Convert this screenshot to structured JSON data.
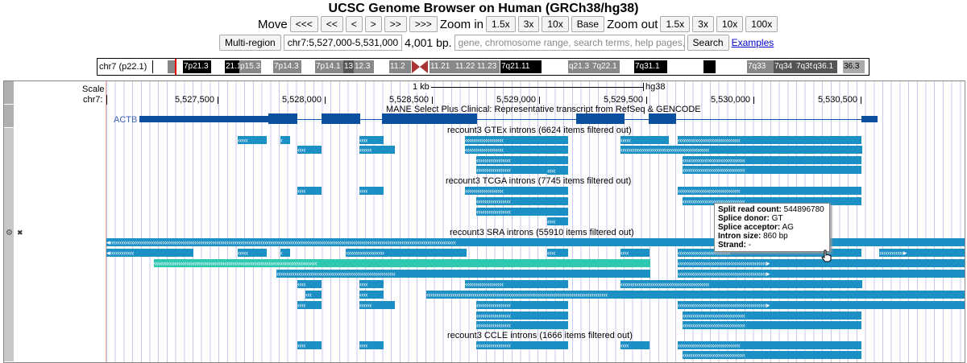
{
  "title": "UCSC Genome Browser on Human (GRCh38/hg38)",
  "nav": {
    "move_label": "Move",
    "move_buttons": [
      "<<<",
      "<<",
      "<",
      ">",
      ">>",
      ">>>"
    ],
    "zoom_in_label": "Zoom in",
    "zoom_in_buttons": [
      "1.5x",
      "3x",
      "10x",
      "Base"
    ],
    "zoom_out_label": "Zoom out",
    "zoom_out_buttons": [
      "1.5x",
      "3x",
      "10x",
      "100x"
    ]
  },
  "position": {
    "multi_region": "Multi-region",
    "value": "chr7:5,527,000-5,531,000",
    "size": "4,001 bp.",
    "search_placeholder": "gene, chromosome range, search terms, help pages, see e",
    "search_button": "Search",
    "examples_link": "Examples"
  },
  "ideogram": {
    "chrom": "chr7 (p22.1)",
    "bands": [
      "7p21.3",
      "21.1",
      "p15.3",
      "7p14.3",
      "7p14.1",
      "13",
      "12.3",
      "11.2",
      "11.21",
      "11.22",
      "11.23",
      "7q21.11",
      "q21.3",
      "7q22.1",
      "7q31.1",
      "7q33",
      "7q34",
      "7q35",
      "q36.1",
      "36.3"
    ]
  },
  "ruler": {
    "scale_label": "Scale",
    "chrom_label": "chr7:",
    "scale_text": "1 kb",
    "assembly": "hg38",
    "ticks": [
      "5,527,500",
      "5,528,000",
      "5,528,500",
      "5,529,000",
      "5,529,500",
      "5,530,000",
      "5,530,500"
    ]
  },
  "tracks": {
    "mane": "MANE Select Plus Clinical: Representative transcript from RefSeq & GENCODE",
    "gene": "ACTB",
    "gtex": "recount3 GTEx introns (6624 items filtered out)",
    "tcga": "recount3 TCGA introns (7745 items filtered out)",
    "sra": "recount3 SRA introns (55910 items filtered out)",
    "ccle": "recount3 CCLE introns (1666 items filtered out)"
  },
  "tooltip": {
    "rows": [
      {
        "k": "Split read count:",
        "v": " 544896780"
      },
      {
        "k": "Splice donor:",
        "v": " GT"
      },
      {
        "k": "Splice acceptor:",
        "v": " AG"
      },
      {
        "k": "Intron size:",
        "v": " 860 bp"
      },
      {
        "k": "Strand:",
        "v": " -"
      }
    ]
  },
  "side_icons": {
    "gear": "⚙",
    "close": "✖"
  },
  "colors": {
    "feature": "#1c8fc4",
    "feature_alt": "#2ec7b0",
    "exon": "#0a4fa0"
  }
}
